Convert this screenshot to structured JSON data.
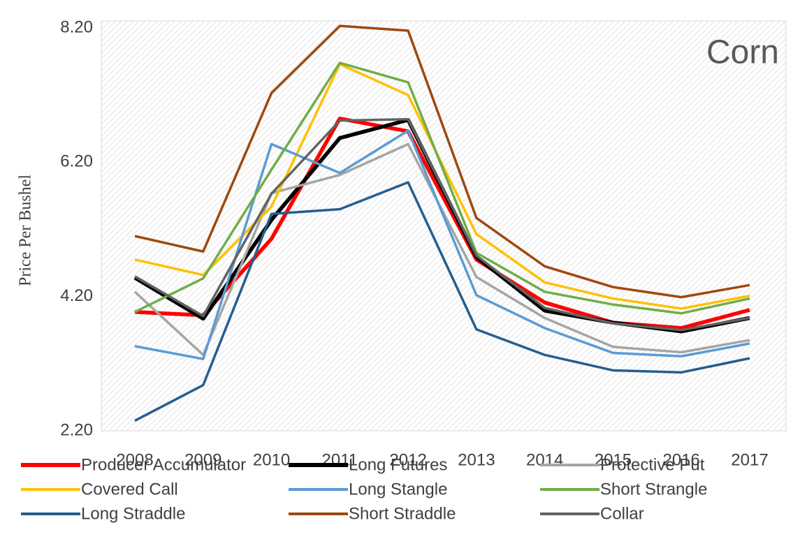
{
  "chart_data": {
    "type": "line",
    "annotation": "Corn",
    "y_label": "Price Per Bushel",
    "categories": [
      "2008",
      "2009",
      "2010",
      "2011",
      "2012",
      "2013",
      "2014",
      "2015",
      "2016",
      "2017"
    ],
    "ylim": [
      2.2,
      8.2
    ],
    "yticks": [
      {
        "value": 2.2,
        "label": "2.20"
      },
      {
        "value": 4.2,
        "label": "4.20"
      },
      {
        "value": 6.2,
        "label": "6.20"
      },
      {
        "value": 8.2,
        "label": "8.20"
      }
    ],
    "series": [
      {
        "name": "Producer Accumulator",
        "color": "#ff0000",
        "values": [
          3.97,
          3.92,
          5.06,
          6.85,
          6.66,
          4.75,
          4.11,
          3.81,
          3.73,
          4.0
        ]
      },
      {
        "name": "Long Futures",
        "color": "#000000",
        "values": [
          4.48,
          3.87,
          5.34,
          6.56,
          6.83,
          4.79,
          3.99,
          3.81,
          3.68,
          3.88
        ]
      },
      {
        "name": "Protective Put",
        "color": "#a5a5a5",
        "values": [
          4.27,
          3.33,
          5.74,
          6.01,
          6.47,
          4.49,
          3.88,
          3.45,
          3.37,
          3.55
        ]
      },
      {
        "name": "Covered Call",
        "color": "#ffc000",
        "values": [
          4.75,
          4.52,
          5.54,
          7.66,
          7.2,
          5.13,
          4.41,
          4.17,
          4.02,
          4.21
        ]
      },
      {
        "name": "Long Stangle",
        "color": "#5b9bd5",
        "values": [
          3.46,
          3.27,
          6.47,
          6.04,
          6.67,
          4.22,
          3.73,
          3.36,
          3.31,
          3.5
        ]
      },
      {
        "name": "Short Strangle",
        "color": "#70ad47",
        "values": [
          3.97,
          4.47,
          6.09,
          7.68,
          7.39,
          4.85,
          4.27,
          4.08,
          3.95,
          4.17
        ]
      },
      {
        "name": "Long Straddle",
        "color": "#255e91",
        "values": [
          2.35,
          2.88,
          5.43,
          5.5,
          5.9,
          3.71,
          3.33,
          3.1,
          3.07,
          3.28
        ]
      },
      {
        "name": "Short Straddle",
        "color": "#9e480e",
        "values": [
          5.1,
          4.87,
          7.23,
          8.23,
          8.16,
          5.37,
          4.65,
          4.34,
          4.19,
          4.37
        ]
      },
      {
        "name": "Collar",
        "color": "#636363",
        "values": [
          4.5,
          3.91,
          5.73,
          6.82,
          6.84,
          4.81,
          4.03,
          3.8,
          3.7,
          3.88
        ]
      }
    ]
  }
}
